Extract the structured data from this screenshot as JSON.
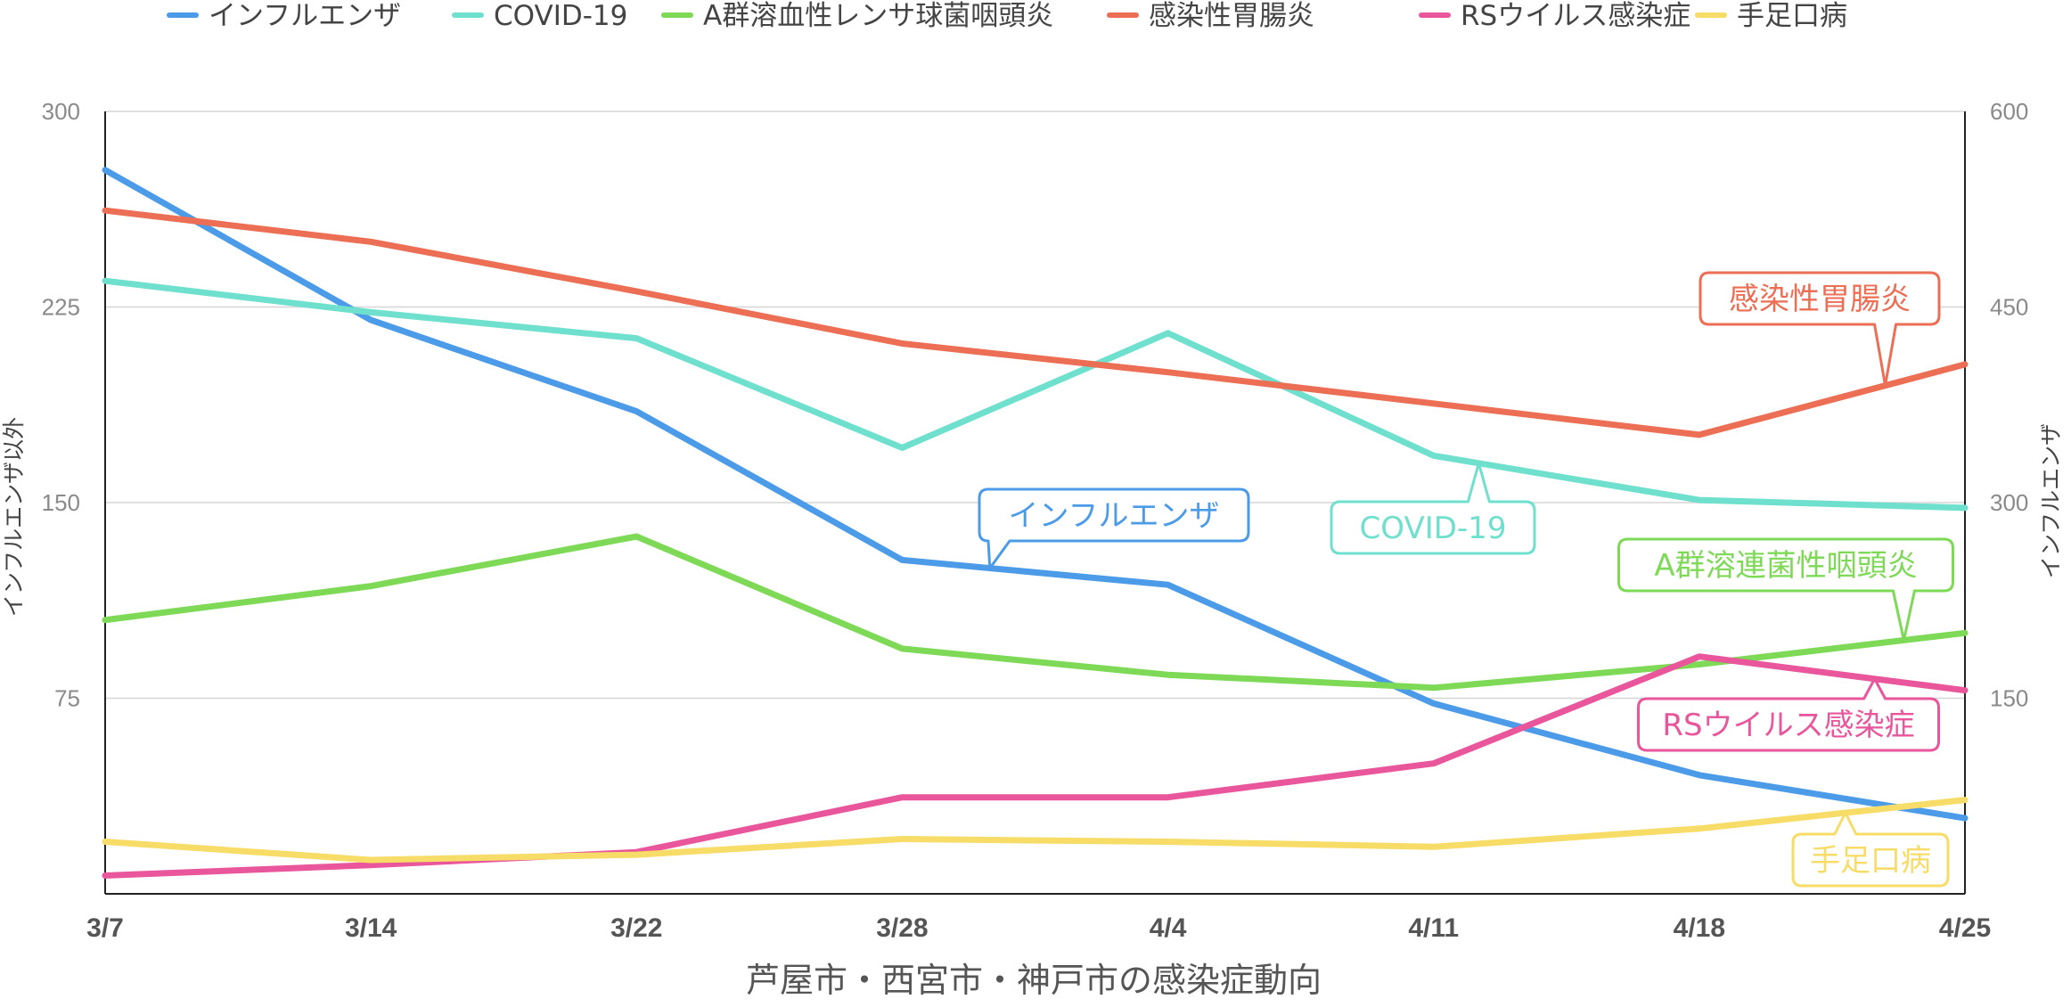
{
  "chart_data": {
    "type": "line",
    "title": "芦屋市・西宮市・神戸市の感染症動向",
    "categories": [
      "3/7",
      "3/14",
      "3/22",
      "3/28",
      "4/4",
      "4/11",
      "4/18",
      "4/25"
    ],
    "y_left": {
      "label": "インフルエンザ以外",
      "range": [
        0,
        300
      ],
      "ticks": [
        "75",
        "150",
        "225",
        "300"
      ]
    },
    "y_right": {
      "label": "インフルエンザ",
      "range": [
        0,
        600
      ],
      "ticks": [
        "150",
        "300",
        "450",
        "600"
      ]
    },
    "grid": true,
    "legend_position": "top",
    "series": [
      {
        "name": "インフルエンザ",
        "axis": "right",
        "color": "#4c9be8",
        "values": [
          555,
          440,
          370,
          256,
          237,
          146,
          91,
          58
        ]
      },
      {
        "name": "COVID-19",
        "axis": "left",
        "color": "#6fe0cd",
        "values": [
          235,
          223,
          213,
          171,
          215,
          168,
          151,
          148
        ]
      },
      {
        "name": "A群溶血性レンサ球菌咽頭炎",
        "axis": "left",
        "color": "#7ed957",
        "values": [
          105,
          118,
          137,
          94,
          84,
          79,
          88,
          100
        ]
      },
      {
        "name": "感染性胃腸炎",
        "axis": "left",
        "color": "#ec6e55",
        "values": [
          262,
          250,
          231,
          211,
          200,
          188,
          176,
          203
        ]
      },
      {
        "name": "RSウイルス感染症",
        "axis": "left",
        "color": "#e9569c",
        "values": [
          7,
          11,
          16,
          37,
          37,
          50,
          91,
          78
        ]
      },
      {
        "name": "手足口病",
        "axis": "left",
        "color": "#f7dc67",
        "values": [
          20,
          13,
          15,
          21,
          20,
          18,
          25,
          36
        ]
      }
    ],
    "annotations": [
      {
        "text": "感染性胃腸炎",
        "series": 3,
        "color": "#ec6e55"
      },
      {
        "text": "インフルエンザ",
        "series": 0,
        "color": "#4c9be8"
      },
      {
        "text": "COVID-19",
        "series": 1,
        "color": "#6fe0cd"
      },
      {
        "text": "A群溶連菌性咽頭炎",
        "series": 2,
        "color": "#7ed957"
      },
      {
        "text": "RSウイルス感染症",
        "series": 4,
        "color": "#e9569c"
      },
      {
        "text": "手足口病",
        "series": 5,
        "color": "#f7dc67"
      }
    ]
  }
}
